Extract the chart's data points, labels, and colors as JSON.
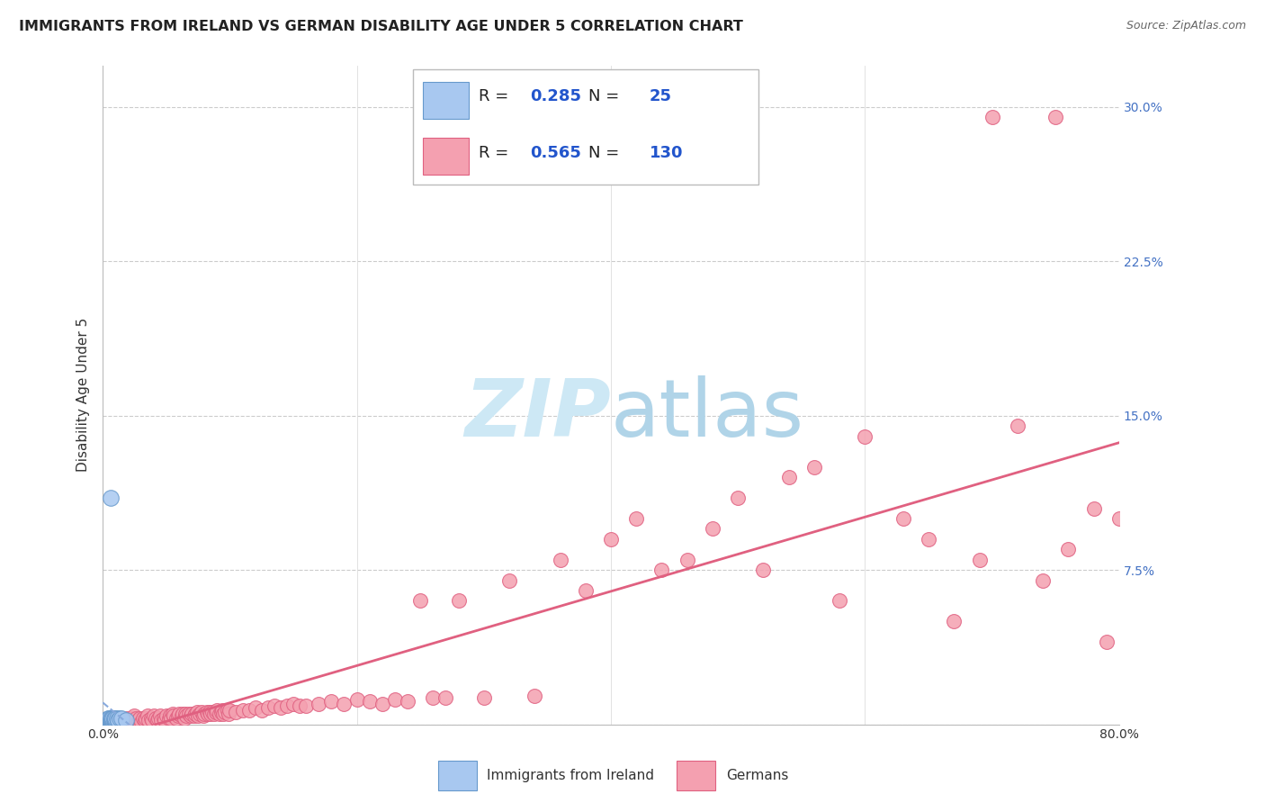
{
  "title": "IMMIGRANTS FROM IRELAND VS GERMAN DISABILITY AGE UNDER 5 CORRELATION CHART",
  "source": "Source: ZipAtlas.com",
  "ylabel": "Disability Age Under 5",
  "xlim": [
    0.0,
    0.8
  ],
  "ylim": [
    0.0,
    0.32
  ],
  "xticks": [
    0.0,
    0.2,
    0.4,
    0.6,
    0.8
  ],
  "xtick_labels": [
    "0.0%",
    "",
    "",
    "",
    "80.0%"
  ],
  "yticks_right": [
    0.0,
    0.075,
    0.15,
    0.225,
    0.3
  ],
  "ytick_labels_right": [
    "",
    "7.5%",
    "15.0%",
    "22.5%",
    "30.0%"
  ],
  "legend_ireland_R": "0.285",
  "legend_ireland_N": "25",
  "legend_german_R": "0.565",
  "legend_german_N": "130",
  "ireland_color": "#a8c8f0",
  "german_color": "#f4a0b0",
  "ireland_edge_color": "#6699cc",
  "german_edge_color": "#e06080",
  "ireland_trendline_color": "#88aadd",
  "german_trendline_color": "#e06080",
  "ireland_points_x": [
    0.002,
    0.003,
    0.004,
    0.004,
    0.005,
    0.005,
    0.005,
    0.006,
    0.006,
    0.006,
    0.007,
    0.007,
    0.007,
    0.008,
    0.008,
    0.009,
    0.009,
    0.01,
    0.01,
    0.011,
    0.012,
    0.013,
    0.015,
    0.018,
    0.006
  ],
  "ireland_points_y": [
    0.002,
    0.001,
    0.002,
    0.003,
    0.001,
    0.002,
    0.003,
    0.001,
    0.002,
    0.003,
    0.001,
    0.002,
    0.003,
    0.002,
    0.003,
    0.002,
    0.003,
    0.002,
    0.003,
    0.003,
    0.002,
    0.003,
    0.003,
    0.002,
    0.11
  ],
  "german_points_x": [
    0.003,
    0.005,
    0.007,
    0.008,
    0.009,
    0.01,
    0.012,
    0.013,
    0.014,
    0.015,
    0.016,
    0.018,
    0.019,
    0.02,
    0.022,
    0.023,
    0.024,
    0.025,
    0.026,
    0.028,
    0.029,
    0.03,
    0.032,
    0.033,
    0.034,
    0.035,
    0.036,
    0.038,
    0.039,
    0.04,
    0.042,
    0.043,
    0.044,
    0.045,
    0.046,
    0.048,
    0.049,
    0.05,
    0.052,
    0.053,
    0.054,
    0.055,
    0.056,
    0.058,
    0.059,
    0.06,
    0.062,
    0.063,
    0.064,
    0.065,
    0.066,
    0.068,
    0.069,
    0.07,
    0.072,
    0.073,
    0.074,
    0.075,
    0.076,
    0.078,
    0.079,
    0.08,
    0.082,
    0.083,
    0.084,
    0.085,
    0.086,
    0.088,
    0.089,
    0.09,
    0.092,
    0.093,
    0.094,
    0.095,
    0.096,
    0.098,
    0.099,
    0.1,
    0.105,
    0.11,
    0.115,
    0.12,
    0.125,
    0.13,
    0.135,
    0.14,
    0.145,
    0.15,
    0.155,
    0.16,
    0.17,
    0.18,
    0.19,
    0.2,
    0.21,
    0.22,
    0.23,
    0.24,
    0.25,
    0.26,
    0.27,
    0.28,
    0.3,
    0.32,
    0.34,
    0.36,
    0.38,
    0.4,
    0.42,
    0.44,
    0.46,
    0.48,
    0.5,
    0.52,
    0.54,
    0.56,
    0.58,
    0.6,
    0.63,
    0.65,
    0.67,
    0.69,
    0.7,
    0.72,
    0.74,
    0.75,
    0.76,
    0.78,
    0.79,
    0.8
  ],
  "german_points_y": [
    0.001,
    0.002,
    0.002,
    0.001,
    0.003,
    0.002,
    0.001,
    0.003,
    0.002,
    0.003,
    0.001,
    0.002,
    0.003,
    0.002,
    0.001,
    0.003,
    0.002,
    0.004,
    0.003,
    0.002,
    0.003,
    0.001,
    0.003,
    0.002,
    0.003,
    0.004,
    0.002,
    0.003,
    0.002,
    0.004,
    0.003,
    0.002,
    0.003,
    0.004,
    0.002,
    0.003,
    0.002,
    0.004,
    0.003,
    0.004,
    0.003,
    0.005,
    0.004,
    0.003,
    0.004,
    0.005,
    0.004,
    0.005,
    0.003,
    0.005,
    0.004,
    0.005,
    0.004,
    0.005,
    0.004,
    0.005,
    0.006,
    0.004,
    0.005,
    0.006,
    0.004,
    0.005,
    0.006,
    0.005,
    0.006,
    0.005,
    0.006,
    0.005,
    0.006,
    0.007,
    0.005,
    0.006,
    0.007,
    0.005,
    0.006,
    0.007,
    0.005,
    0.007,
    0.006,
    0.007,
    0.007,
    0.008,
    0.007,
    0.008,
    0.009,
    0.008,
    0.009,
    0.01,
    0.009,
    0.009,
    0.01,
    0.011,
    0.01,
    0.012,
    0.011,
    0.01,
    0.012,
    0.011,
    0.06,
    0.013,
    0.013,
    0.06,
    0.013,
    0.07,
    0.014,
    0.08,
    0.065,
    0.09,
    0.1,
    0.075,
    0.08,
    0.095,
    0.11,
    0.075,
    0.12,
    0.125,
    0.06,
    0.14,
    0.1,
    0.09,
    0.05,
    0.08,
    0.295,
    0.145,
    0.07,
    0.295,
    0.085,
    0.105,
    0.04,
    0.1
  ]
}
